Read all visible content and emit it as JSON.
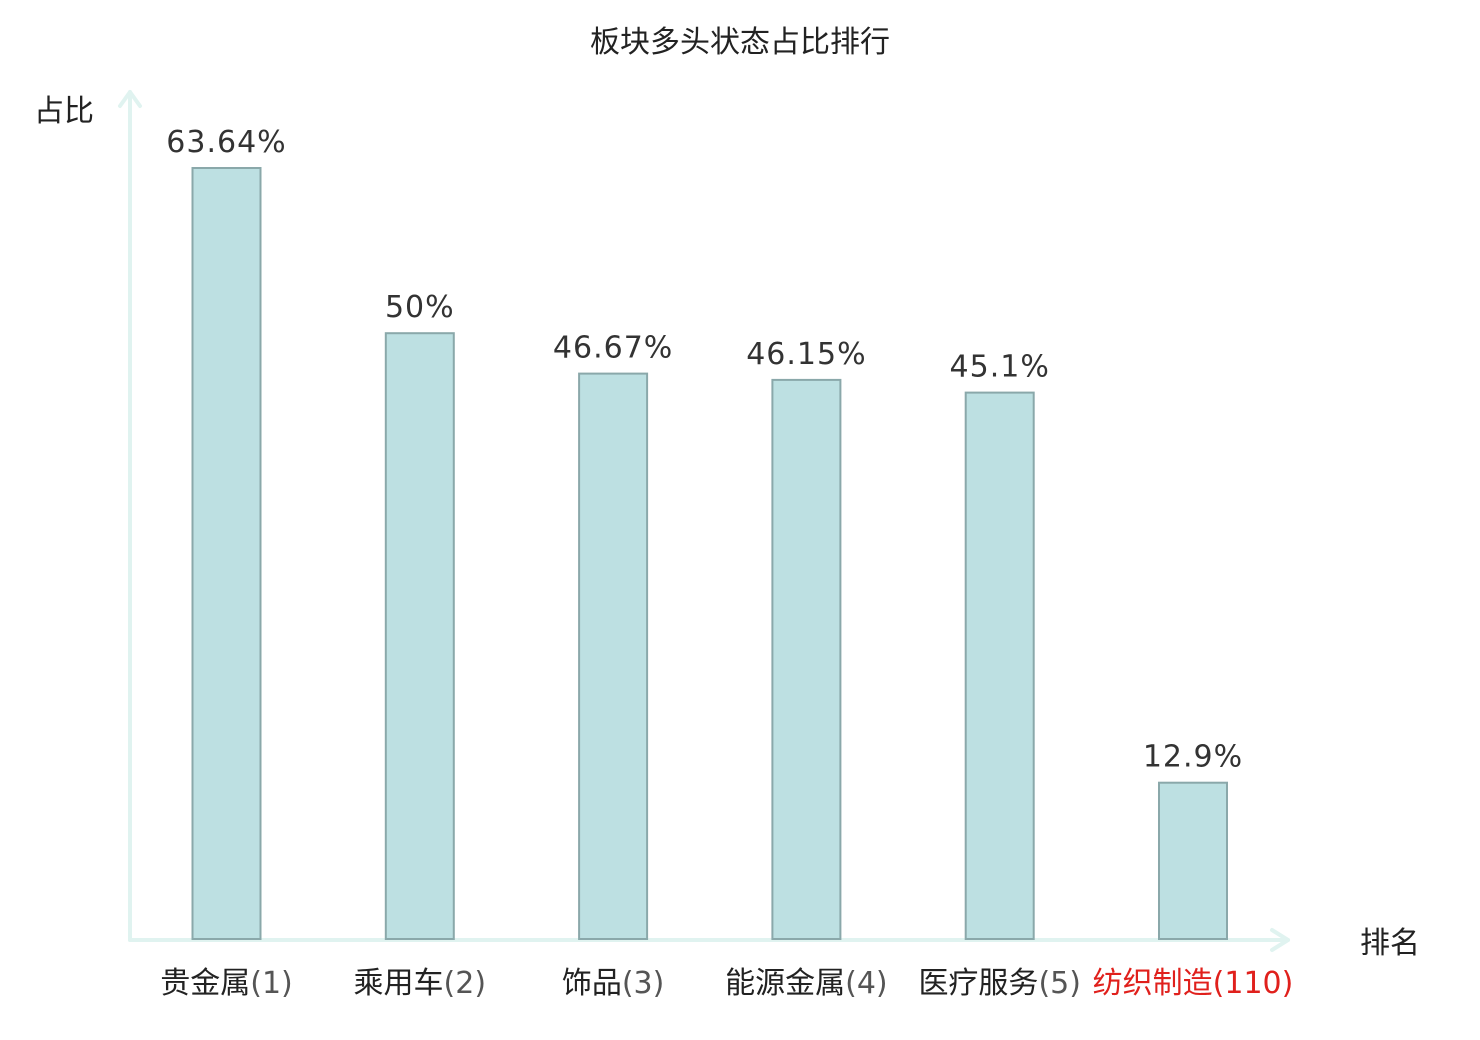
{
  "chart_data": {
    "type": "bar",
    "title": "板块多头状态占比排行",
    "ylabel": "占比",
    "xlabel": "排名",
    "ylim": [
      0,
      70
    ],
    "grid": false,
    "categories": [
      {
        "name": "贵金属",
        "rank": "(1)",
        "highlight": false
      },
      {
        "name": "乘用车",
        "rank": "(2)",
        "highlight": false
      },
      {
        "name": "饰品",
        "rank": "(3)",
        "highlight": false
      },
      {
        "name": "能源金属",
        "rank": "(4)",
        "highlight": false
      },
      {
        "name": "医疗服务",
        "rank": "(5)",
        "highlight": false
      },
      {
        "name": "纺织制造",
        "rank": "(110)",
        "highlight": true
      }
    ],
    "values": [
      63.64,
      50,
      46.67,
      46.15,
      45.1,
      12.9
    ],
    "value_labels": [
      "63.64%",
      "50%",
      "46.67%",
      "46.15%",
      "45.1%",
      "12.9%"
    ]
  },
  "colors": {
    "bar_fill": "#bde0e2",
    "bar_stroke": "#8aa8aa",
    "axis": "#e0f3f0",
    "text": "#222222",
    "rank_text": "#555555",
    "highlight": "#e0201c"
  }
}
